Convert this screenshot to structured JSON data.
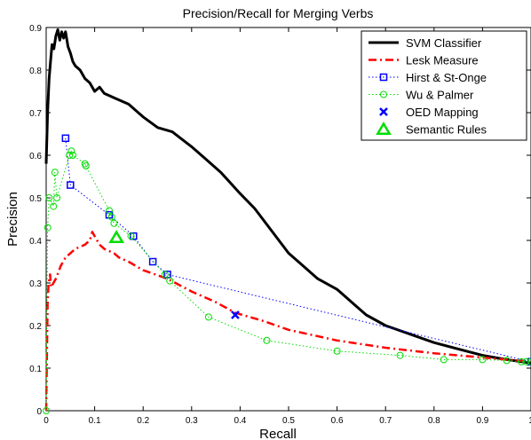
{
  "chart_data": {
    "type": "line",
    "title": "Precision/Recall for Merging Verbs",
    "xlabel": "Recall",
    "ylabel": "Precision",
    "xlim": [
      0,
      1
    ],
    "ylim": [
      0,
      0.9
    ],
    "xticks": [
      0,
      0.1,
      0.2,
      0.3,
      0.4,
      0.5,
      0.6,
      0.7,
      0.8,
      0.9,
      1
    ],
    "xtick_labels": [
      "0",
      "0.1",
      "0.2",
      "0.3",
      "0.4",
      "0.5",
      "0.6",
      "0.7",
      "0.8",
      "0.9",
      "1"
    ],
    "yticks": [
      0,
      0.1,
      0.2,
      0.3,
      0.4,
      0.5,
      0.6,
      0.7,
      0.8,
      0.9
    ],
    "ytick_labels": [
      "0",
      "0.1",
      "0.2",
      "0.3",
      "0.4",
      "0.5",
      "0.6",
      "0.7",
      "0.8",
      "0.9"
    ],
    "grid": false,
    "legend_position": "top-right",
    "series": [
      {
        "name": "SVM Classifier",
        "color": "#000000",
        "style": "solid",
        "marker": "none",
        "x": [
          0.0,
          0.003,
          0.006,
          0.009,
          0.012,
          0.016,
          0.02,
          0.024,
          0.028,
          0.032,
          0.036,
          0.04,
          0.045,
          0.05,
          0.055,
          0.06,
          0.07,
          0.08,
          0.09,
          0.1,
          0.11,
          0.12,
          0.13,
          0.14,
          0.15,
          0.17,
          0.2,
          0.23,
          0.26,
          0.3,
          0.33,
          0.36,
          0.4,
          0.43,
          0.46,
          0.5,
          0.53,
          0.56,
          0.6,
          0.63,
          0.66,
          0.7,
          0.75,
          0.8,
          0.85,
          0.9,
          0.95,
          1.0
        ],
        "y": [
          0.58,
          0.7,
          0.78,
          0.82,
          0.86,
          0.85,
          0.88,
          0.895,
          0.87,
          0.89,
          0.875,
          0.89,
          0.855,
          0.84,
          0.82,
          0.81,
          0.8,
          0.78,
          0.77,
          0.75,
          0.76,
          0.745,
          0.74,
          0.735,
          0.73,
          0.72,
          0.69,
          0.665,
          0.655,
          0.62,
          0.59,
          0.56,
          0.51,
          0.475,
          0.43,
          0.37,
          0.34,
          0.31,
          0.285,
          0.255,
          0.225,
          0.2,
          0.18,
          0.16,
          0.145,
          0.13,
          0.12,
          0.112
        ]
      },
      {
        "name": "Lesk Measure",
        "color": "#ff0000",
        "style": "dashdot",
        "marker": "none",
        "x": [
          0.0,
          0.003,
          0.005,
          0.008,
          0.01,
          0.015,
          0.02,
          0.03,
          0.04,
          0.05,
          0.06,
          0.07,
          0.08,
          0.09,
          0.095,
          0.1,
          0.11,
          0.12,
          0.13,
          0.14,
          0.15,
          0.17,
          0.2,
          0.25,
          0.3,
          0.35,
          0.39,
          0.45,
          0.5,
          0.6,
          0.7,
          0.8,
          0.9,
          1.0
        ],
        "y": [
          0.0,
          0.25,
          0.3,
          0.32,
          0.29,
          0.3,
          0.31,
          0.34,
          0.36,
          0.37,
          0.38,
          0.385,
          0.39,
          0.4,
          0.42,
          0.41,
          0.39,
          0.38,
          0.375,
          0.37,
          0.36,
          0.35,
          0.33,
          0.31,
          0.28,
          0.255,
          0.23,
          0.21,
          0.19,
          0.165,
          0.148,
          0.135,
          0.125,
          0.115
        ]
      },
      {
        "name": "Hirst & St-Onge",
        "color": "#0000ff",
        "style": "dotted",
        "marker": "square",
        "x": [
          0.04,
          0.05,
          0.13,
          0.18,
          0.22,
          0.25,
          1.0
        ],
        "y": [
          0.64,
          0.53,
          0.46,
          0.41,
          0.35,
          0.32,
          0.115
        ]
      },
      {
        "name": "Wu & Palmer",
        "color": "#00dd00",
        "style": "dotted",
        "marker": "circle",
        "x": [
          0.0,
          0.003,
          0.006,
          0.015,
          0.018,
          0.022,
          0.048,
          0.052,
          0.055,
          0.08,
          0.082,
          0.13,
          0.135,
          0.14,
          0.175,
          0.245,
          0.255,
          0.335,
          0.455,
          0.6,
          0.73,
          0.82,
          0.9,
          0.95,
          0.98,
          0.99,
          1.0
        ],
        "y": [
          0.0,
          0.43,
          0.5,
          0.48,
          0.56,
          0.5,
          0.6,
          0.61,
          0.6,
          0.58,
          0.575,
          0.47,
          0.455,
          0.44,
          0.41,
          0.32,
          0.305,
          0.22,
          0.165,
          0.14,
          0.13,
          0.12,
          0.12,
          0.118,
          0.115,
          0.115,
          0.115
        ]
      },
      {
        "name": "OED Mapping",
        "color": "#0000ff",
        "style": "none",
        "marker": "x",
        "x": [
          0.39
        ],
        "y": [
          0.225
        ]
      },
      {
        "name": "Semantic Rules",
        "color": "#00dd00",
        "style": "none",
        "marker": "triangle",
        "x": [
          0.145
        ],
        "y": [
          0.405
        ]
      }
    ]
  }
}
